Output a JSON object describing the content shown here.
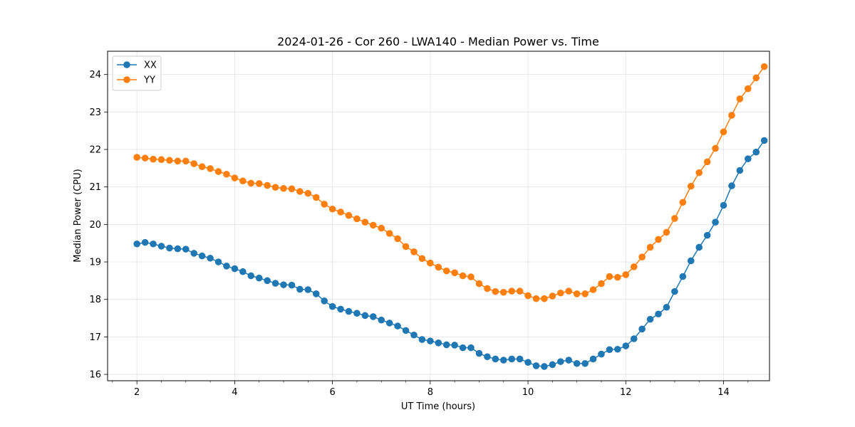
{
  "chart_data": {
    "type": "line",
    "title": "2024-01-26 - Cor 260 - LWA140 - Median Power vs. Time",
    "xlabel": "UT Time (hours)",
    "ylabel": "Median Power (CPU)",
    "xlim": [
      1.4,
      14.94
    ],
    "ylim": [
      15.83,
      24.62
    ],
    "xticks": [
      2,
      4,
      6,
      8,
      10,
      12,
      14
    ],
    "yticks": [
      16,
      17,
      18,
      19,
      20,
      21,
      22,
      23,
      24
    ],
    "grid": true,
    "legend_position": "upper-left",
    "x": [
      2.0,
      2.167,
      2.333,
      2.5,
      2.667,
      2.833,
      3.0,
      3.167,
      3.333,
      3.5,
      3.667,
      3.833,
      4.0,
      4.167,
      4.333,
      4.5,
      4.667,
      4.833,
      5.0,
      5.167,
      5.333,
      5.5,
      5.667,
      5.833,
      6.0,
      6.167,
      6.333,
      6.5,
      6.667,
      6.833,
      7.0,
      7.167,
      7.333,
      7.5,
      7.667,
      7.833,
      8.0,
      8.167,
      8.333,
      8.5,
      8.667,
      8.833,
      9.0,
      9.167,
      9.333,
      9.5,
      9.667,
      9.833,
      10.0,
      10.167,
      10.333,
      10.5,
      10.667,
      10.833,
      11.0,
      11.167,
      11.333,
      11.5,
      11.667,
      11.833,
      12.0,
      12.167,
      12.333,
      12.5,
      12.667,
      12.833,
      13.0,
      13.167,
      13.333,
      13.5,
      13.667,
      13.833,
      14.0,
      14.167,
      14.333,
      14.5,
      14.667,
      14.833
    ],
    "series": [
      {
        "name": "XX",
        "color": "#1f77b4",
        "values": [
          19.48,
          19.52,
          19.48,
          19.42,
          19.37,
          19.35,
          19.34,
          19.23,
          19.16,
          19.1,
          19.0,
          18.89,
          18.82,
          18.74,
          18.63,
          18.57,
          18.5,
          18.43,
          18.39,
          18.38,
          18.27,
          18.26,
          18.15,
          17.96,
          17.81,
          17.74,
          17.68,
          17.63,
          17.57,
          17.54,
          17.45,
          17.37,
          17.29,
          17.17,
          17.05,
          16.93,
          16.89,
          16.84,
          16.79,
          16.78,
          16.71,
          16.71,
          16.56,
          16.47,
          16.41,
          16.38,
          16.41,
          16.41,
          16.32,
          16.23,
          16.21,
          16.26,
          16.34,
          16.38,
          16.29,
          16.29,
          16.41,
          16.54,
          16.66,
          16.67,
          16.76,
          16.95,
          17.21,
          17.47,
          17.61,
          17.79,
          18.21,
          18.61,
          19.03,
          19.39,
          19.71,
          20.06,
          20.51,
          21.03,
          21.44,
          21.75,
          21.93,
          22.24
        ]
      },
      {
        "name": "YY",
        "color": "#ff7f0e",
        "values": [
          21.79,
          21.77,
          21.74,
          21.73,
          21.71,
          21.69,
          21.69,
          21.62,
          21.54,
          21.49,
          21.41,
          21.34,
          21.24,
          21.16,
          21.1,
          21.09,
          21.04,
          20.99,
          20.96,
          20.95,
          20.88,
          20.83,
          20.72,
          20.54,
          20.41,
          20.33,
          20.24,
          20.15,
          20.06,
          19.98,
          19.9,
          19.76,
          19.62,
          19.41,
          19.27,
          19.09,
          18.97,
          18.86,
          18.76,
          18.71,
          18.63,
          18.6,
          18.42,
          18.29,
          18.21,
          18.19,
          18.22,
          18.22,
          18.1,
          18.02,
          18.02,
          18.09,
          18.17,
          18.22,
          18.15,
          18.15,
          18.26,
          18.42,
          18.61,
          18.59,
          18.66,
          18.87,
          19.13,
          19.39,
          19.6,
          19.79,
          20.16,
          20.59,
          21.02,
          21.38,
          21.67,
          22.03,
          22.47,
          22.91,
          23.35,
          23.62,
          23.91,
          24.21
        ]
      }
    ]
  }
}
